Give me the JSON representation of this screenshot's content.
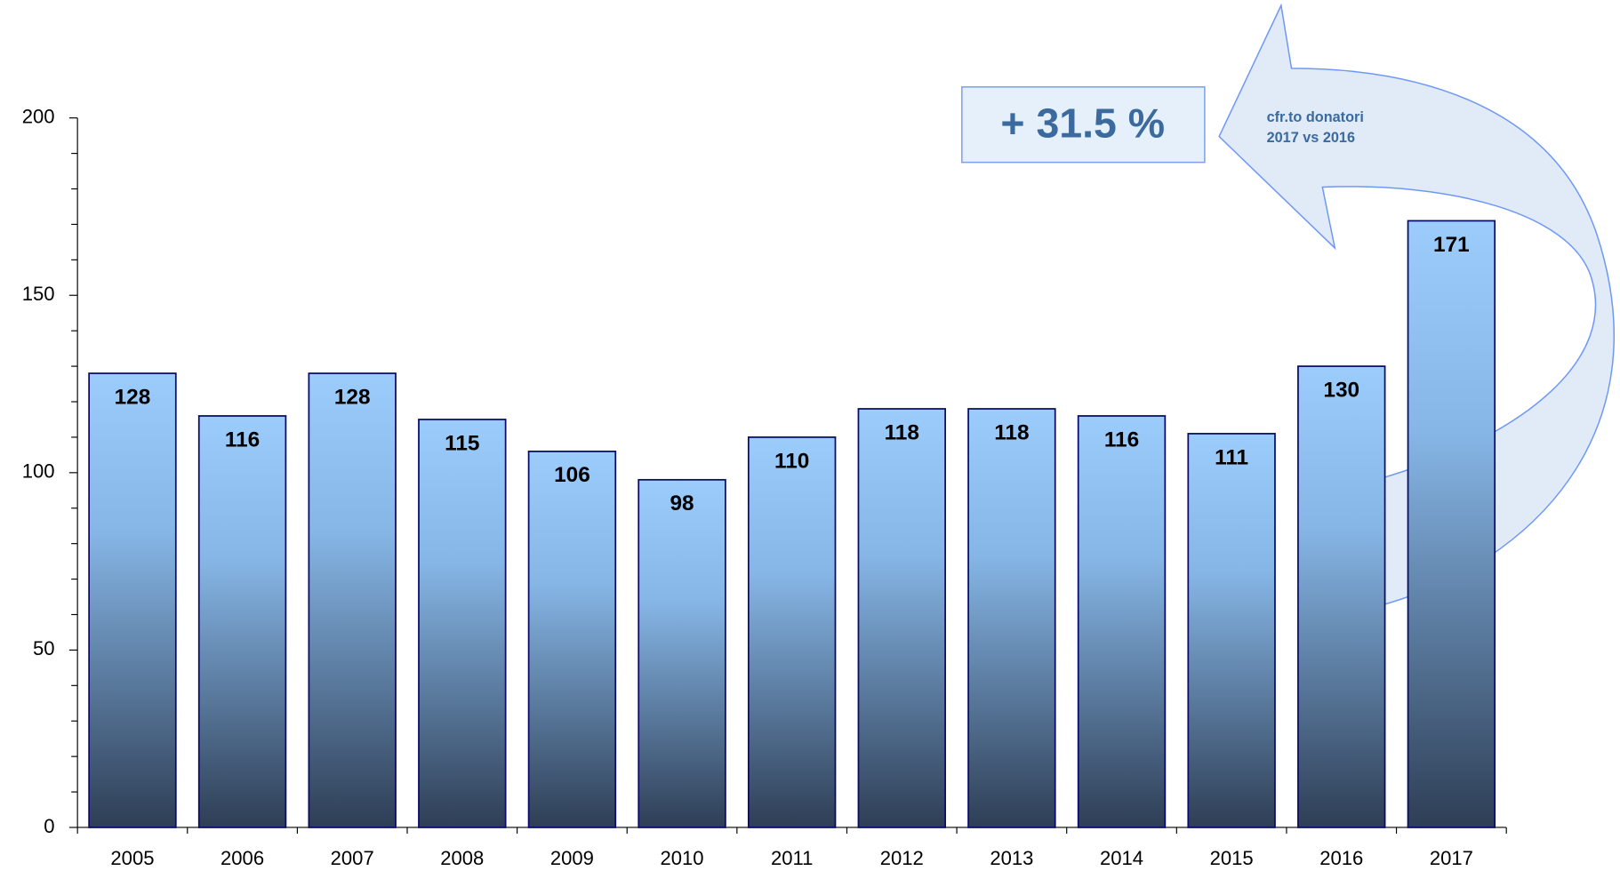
{
  "chart_data": {
    "type": "bar",
    "categories": [
      "2005",
      "2006",
      "2007",
      "2008",
      "2009",
      "2010",
      "2011",
      "2012",
      "2013",
      "2014",
      "2015",
      "2016",
      "2017"
    ],
    "values": [
      128,
      116,
      128,
      115,
      106,
      98,
      110,
      118,
      118,
      116,
      111,
      130,
      171
    ],
    "color": "#9cccfb",
    "ylim": [
      0,
      200
    ],
    "yticks": [
      0,
      50,
      100,
      150,
      200
    ],
    "yminorticks": [
      10,
      20,
      30,
      40,
      60,
      70,
      80,
      90,
      110,
      120,
      130,
      140,
      160,
      170,
      180,
      190
    ],
    "annotations": [
      "+ 31.5 %",
      "cfr.to donatori",
      "2017 vs 2016"
    ]
  }
}
